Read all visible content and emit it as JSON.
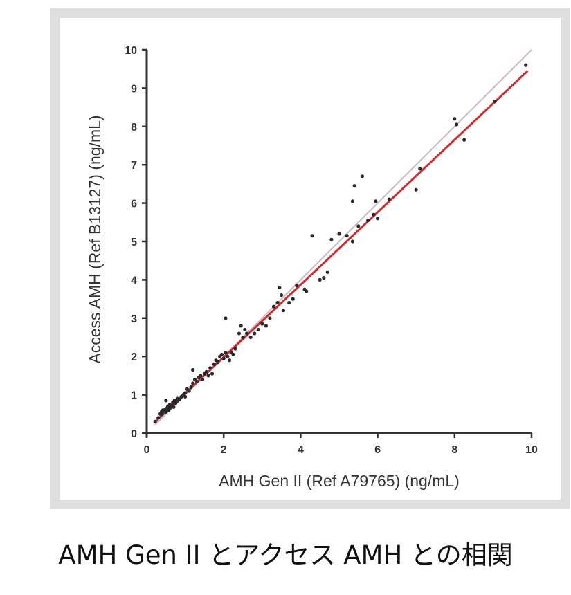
{
  "caption": "AMH Gen II とアクセス AMH との相関",
  "chart_data": {
    "type": "scatter",
    "xlabel": "AMH Gen II (Ref A79765) (ng/mL)",
    "ylabel": "Access AMH (Ref B13127) (ng/mL)",
    "xlim": [
      0,
      10
    ],
    "ylim": [
      0,
      10
    ],
    "x_ticks": [
      "0",
      "2",
      "4",
      "6",
      "8",
      "10"
    ],
    "y_ticks": [
      "0",
      "1",
      "2",
      "3",
      "4",
      "5",
      "6",
      "7",
      "8",
      "9",
      "10"
    ],
    "grid": false,
    "colors": {
      "points": "#2b2b2b",
      "regression": "#d42a2a",
      "identity": "#c9b6c3",
      "axis": "#333333"
    },
    "reference_line": {
      "name": "",
      "x": [
        0.2,
        10
      ],
      "y": [
        0.2,
        10
      ]
    },
    "regression_line": {
      "name": "",
      "x": [
        0.2,
        9.9
      ],
      "y": [
        0.28,
        9.45
      ]
    },
    "points": [
      [
        0.22,
        0.3
      ],
      [
        0.3,
        0.4
      ],
      [
        0.35,
        0.5
      ],
      [
        0.38,
        0.55
      ],
      [
        0.4,
        0.5
      ],
      [
        0.42,
        0.6
      ],
      [
        0.45,
        0.58
      ],
      [
        0.48,
        0.62
      ],
      [
        0.5,
        0.55
      ],
      [
        0.5,
        0.85
      ],
      [
        0.52,
        0.65
      ],
      [
        0.55,
        0.7
      ],
      [
        0.57,
        0.6
      ],
      [
        0.6,
        0.75
      ],
      [
        0.6,
        0.65
      ],
      [
        0.62,
        0.7
      ],
      [
        0.65,
        0.72
      ],
      [
        0.68,
        0.8
      ],
      [
        0.7,
        0.68
      ],
      [
        0.72,
        0.85
      ],
      [
        0.75,
        0.78
      ],
      [
        0.78,
        0.82
      ],
      [
        0.8,
        0.9
      ],
      [
        0.85,
        0.88
      ],
      [
        0.9,
        0.95
      ],
      [
        0.95,
        1.0
      ],
      [
        1.0,
        1.05
      ],
      [
        1.0,
        0.95
      ],
      [
        1.05,
        1.15
      ],
      [
        1.1,
        1.1
      ],
      [
        1.15,
        1.2
      ],
      [
        1.2,
        1.3
      ],
      [
        1.2,
        1.65
      ],
      [
        1.25,
        1.4
      ],
      [
        1.3,
        1.35
      ],
      [
        1.35,
        1.45
      ],
      [
        1.4,
        1.5
      ],
      [
        1.45,
        1.4
      ],
      [
        1.5,
        1.55
      ],
      [
        1.55,
        1.6
      ],
      [
        1.6,
        1.5
      ],
      [
        1.65,
        1.7
      ],
      [
        1.7,
        1.55
      ],
      [
        1.75,
        1.8
      ],
      [
        1.8,
        1.9
      ],
      [
        1.85,
        1.85
      ],
      [
        1.9,
        2.0
      ],
      [
        1.95,
        2.05
      ],
      [
        2.0,
        1.95
      ],
      [
        2.05,
        2.1
      ],
      [
        2.05,
        3.0
      ],
      [
        2.1,
        2.0
      ],
      [
        2.15,
        1.9
      ],
      [
        2.2,
        2.1
      ],
      [
        2.25,
        2.05
      ],
      [
        2.3,
        2.2
      ],
      [
        2.4,
        2.6
      ],
      [
        2.45,
        2.8
      ],
      [
        2.5,
        2.5
      ],
      [
        2.55,
        2.7
      ],
      [
        2.6,
        2.6
      ],
      [
        2.7,
        2.5
      ],
      [
        2.8,
        2.6
      ],
      [
        2.9,
        2.7
      ],
      [
        3.0,
        2.85
      ],
      [
        3.1,
        2.8
      ],
      [
        3.2,
        3.0
      ],
      [
        3.3,
        3.3
      ],
      [
        3.4,
        3.4
      ],
      [
        3.45,
        3.8
      ],
      [
        3.5,
        3.6
      ],
      [
        3.55,
        3.2
      ],
      [
        3.7,
        3.4
      ],
      [
        3.8,
        3.5
      ],
      [
        3.9,
        3.85
      ],
      [
        4.1,
        3.75
      ],
      [
        4.15,
        3.7
      ],
      [
        4.3,
        5.15
      ],
      [
        4.5,
        4.0
      ],
      [
        4.6,
        4.05
      ],
      [
        4.7,
        4.2
      ],
      [
        4.8,
        5.05
      ],
      [
        5.0,
        5.2
      ],
      [
        5.2,
        5.15
      ],
      [
        5.35,
        5.0
      ],
      [
        5.35,
        6.05
      ],
      [
        5.4,
        6.45
      ],
      [
        5.5,
        5.4
      ],
      [
        5.6,
        6.7
      ],
      [
        5.75,
        5.55
      ],
      [
        5.9,
        5.7
      ],
      [
        5.95,
        6.05
      ],
      [
        6.0,
        5.6
      ],
      [
        6.3,
        6.1
      ],
      [
        7.0,
        6.35
      ],
      [
        7.1,
        6.9
      ],
      [
        8.0,
        8.2
      ],
      [
        8.05,
        8.05
      ],
      [
        8.25,
        7.65
      ],
      [
        9.05,
        8.65
      ],
      [
        9.85,
        9.6
      ]
    ]
  }
}
